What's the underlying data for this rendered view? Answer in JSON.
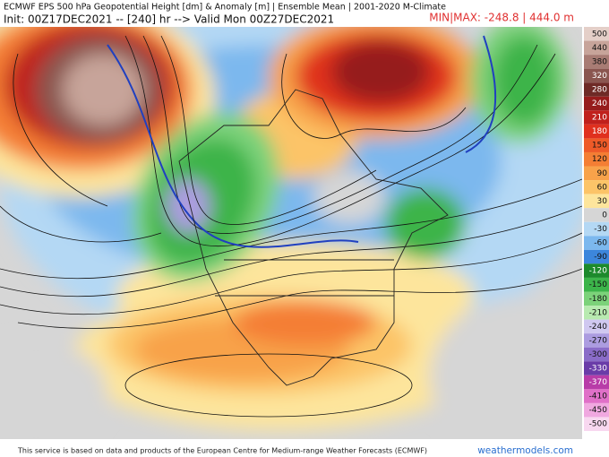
{
  "header": {
    "title": "ECMWF EPS 500 hPa Geopotential Height [dm] & Anomaly [m] | Ensemble Mean | 2001-2020 M-Climate",
    "init": "Init: 00Z17DEC2021 -- [240] hr --> Valid Mon 00Z27DEC2021",
    "minmax": "MIN|MAX: -248.8 | 444.0 m"
  },
  "colorbar": {
    "entries": [
      {
        "value": 500,
        "color": "#e4cfc8"
      },
      {
        "value": 440,
        "color": "#c7a49a"
      },
      {
        "value": 380,
        "color": "#a87c74"
      },
      {
        "value": 320,
        "color": "#8a5650"
      },
      {
        "value": 280,
        "color": "#6e2a26"
      },
      {
        "value": 240,
        "color": "#961c1c"
      },
      {
        "value": 210,
        "color": "#c0201c"
      },
      {
        "value": 180,
        "color": "#e0301e"
      },
      {
        "value": 150,
        "color": "#ee5a28"
      },
      {
        "value": 120,
        "color": "#f47e34"
      },
      {
        "value": 90,
        "color": "#f8a24a"
      },
      {
        "value": 60,
        "color": "#fcc468"
      },
      {
        "value": 30,
        "color": "#fde59c"
      },
      {
        "value": 0,
        "color": "#d6d6d6"
      },
      {
        "value": -30,
        "color": "#b4d8f4"
      },
      {
        "value": -60,
        "color": "#7cb8ee"
      },
      {
        "value": -90,
        "color": "#3c86dc"
      },
      {
        "value": -120,
        "color": "#1c8a2c"
      },
      {
        "value": -150,
        "color": "#3cb44a"
      },
      {
        "value": -180,
        "color": "#7cd27a"
      },
      {
        "value": -210,
        "color": "#b8eab0"
      },
      {
        "value": -240,
        "color": "#d0c8f0"
      },
      {
        "value": -270,
        "color": "#ac9ce0"
      },
      {
        "value": -300,
        "color": "#8a6cc8"
      },
      {
        "value": -330,
        "color": "#6a3ca8"
      },
      {
        "value": -370,
        "color": "#b83ca8"
      },
      {
        "value": -410,
        "color": "#e070c8"
      },
      {
        "value": -450,
        "color": "#f0a8e0"
      },
      {
        "value": -500,
        "color": "#f8d8f0"
      }
    ]
  },
  "footer": {
    "credit": "This service is based on data and products of the European Centre for Medium-range Weather Forecasts (ECMWF)",
    "brand": "weathermodels.com"
  }
}
